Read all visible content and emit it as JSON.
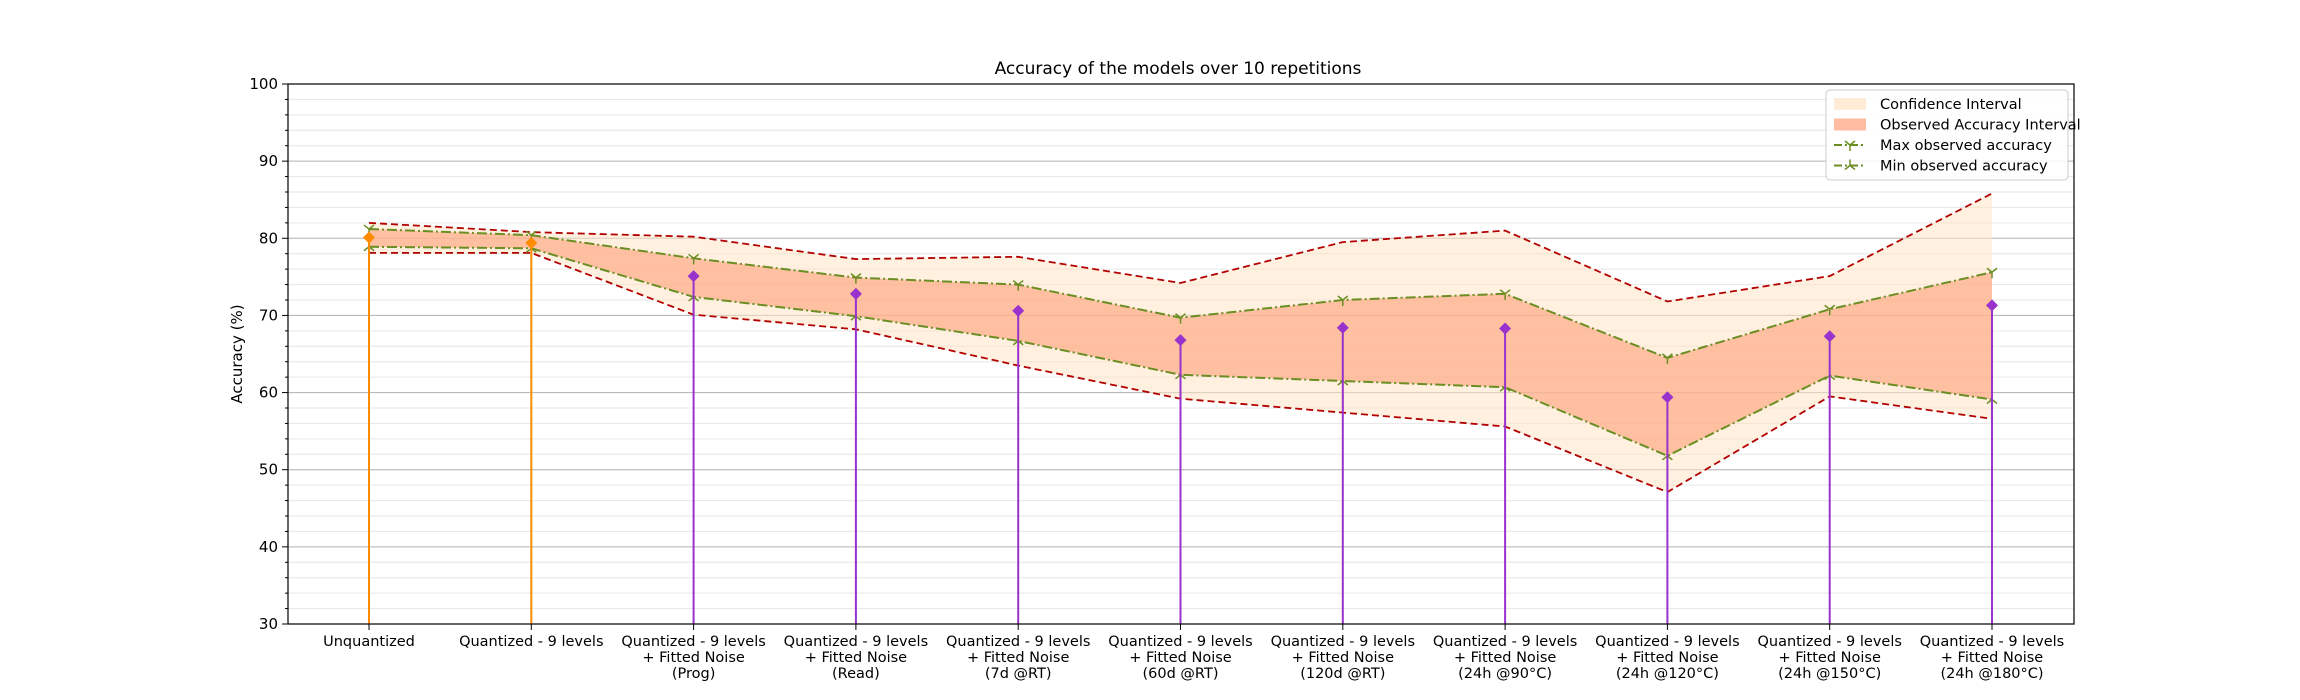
{
  "chart_data": {
    "type": "line",
    "title": "Accuracy of the models over 10 repetitions",
    "xlabel": "",
    "ylabel": "Accuracy (%)",
    "ylim": [
      30,
      100
    ],
    "yticks": [
      30,
      40,
      50,
      60,
      70,
      80,
      90,
      100
    ],
    "grid": "horizontal major and minor",
    "legend_position": "top-right",
    "categories": [
      "Unquantized",
      "Quantized - 9 levels",
      "Quantized - 9 levels\n+ Fitted Noise\n(Prog)",
      "Quantized - 9 levels\n+ Fitted Noise\n(Read)",
      "Quantized - 9 levels\n+ Fitted Noise\n(7d @RT)",
      "Quantized - 9 levels\n+ Fitted Noise\n(60d @RT)",
      "Quantized - 9 levels\n+ Fitted Noise\n(120d @RT)",
      "Quantized - 9 levels\n+ Fitted Noise\n(24h @90°C)",
      "Quantized - 9 levels\n+ Fitted Noise\n(24h @120°C)",
      "Quantized - 9 levels\n+ Fitted Noise\n(24h @150°C)",
      "Quantized - 9 levels\n+ Fitted Noise\n(24h @180°C)"
    ],
    "mean_accuracy": [
      80.1,
      79.4,
      75.1,
      72.8,
      70.6,
      66.8,
      68.4,
      68.3,
      59.4,
      67.3,
      71.3
    ],
    "ci_upper": [
      82.0,
      80.8,
      80.2,
      77.3,
      77.6,
      74.2,
      79.5,
      81.0,
      71.8,
      75.1,
      85.8
    ],
    "ci_lower": [
      78.1,
      78.1,
      70.1,
      68.2,
      63.5,
      59.2,
      57.4,
      55.6,
      47.1,
      59.5,
      56.6
    ],
    "max_observed": [
      81.2,
      80.4,
      77.4,
      74.9,
      74.0,
      69.7,
      72.0,
      72.8,
      64.5,
      70.8,
      75.6
    ],
    "min_observed": [
      78.9,
      78.7,
      72.4,
      69.9,
      66.7,
      62.3,
      61.5,
      60.7,
      51.8,
      62.2,
      59.1
    ],
    "stem_colors": [
      "#ff8c00",
      "#ff8c00",
      "#9932cc",
      "#9932cc",
      "#9932cc",
      "#9932cc",
      "#9932cc",
      "#9932cc",
      "#9932cc",
      "#9932cc",
      "#9932cc"
    ],
    "colors": {
      "confidence_interval": "#ffe4c4",
      "observed_interval": "#ffa07a",
      "ci_line": "#b30000",
      "observed_line": "#6b8e23",
      "orange_marker": "#ff8c00",
      "purple_marker": "#9932cc"
    },
    "legend": [
      {
        "label": "Confidence Interval",
        "kind": "patch-light"
      },
      {
        "label": "Observed Accuracy Interval",
        "kind": "patch-dark"
      },
      {
        "label": "Max observed accuracy",
        "kind": "line-y"
      },
      {
        "label": "Min observed accuracy",
        "kind": "line-x"
      }
    ]
  }
}
